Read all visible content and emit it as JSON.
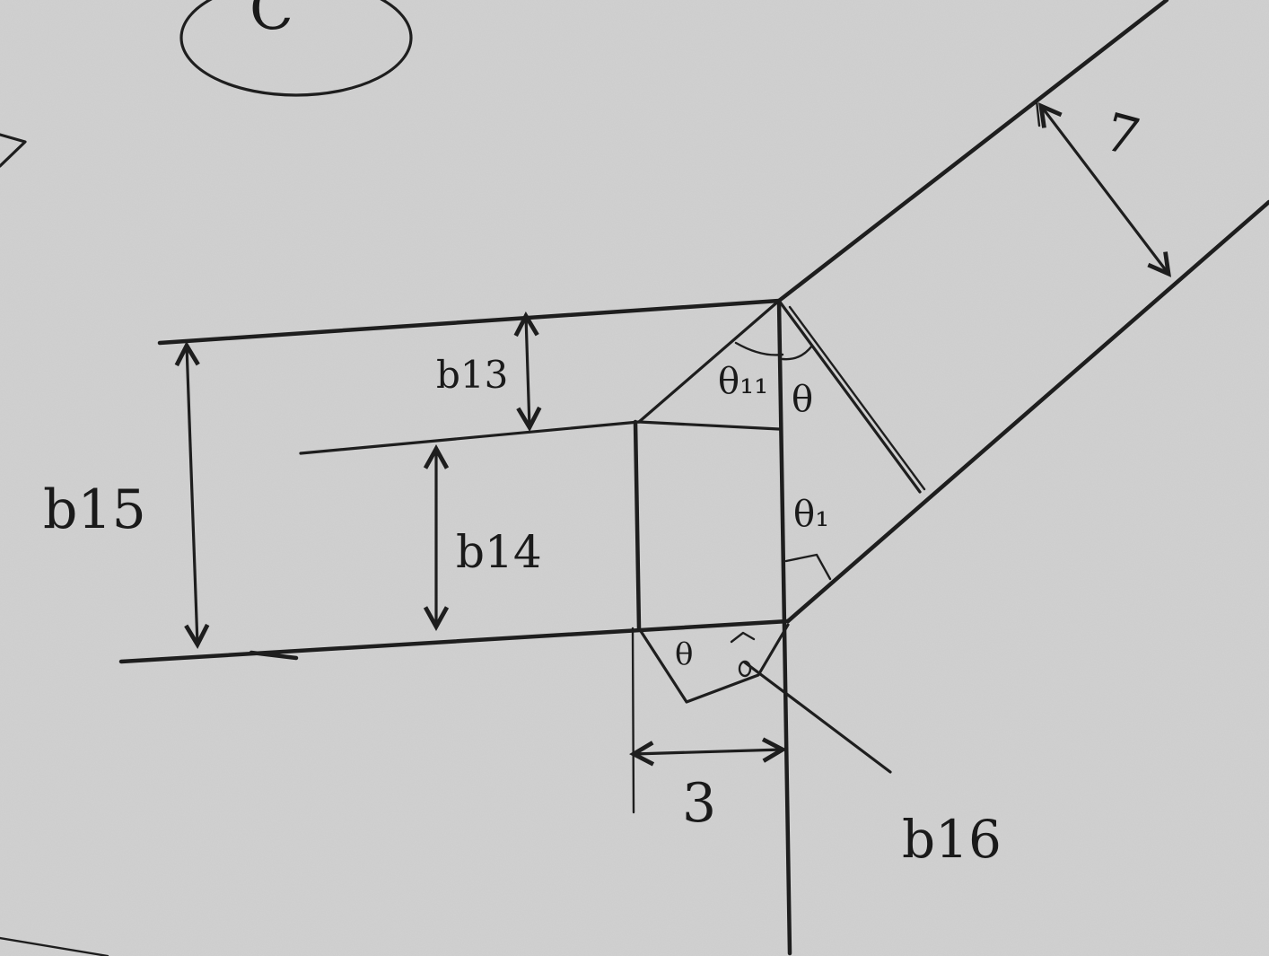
{
  "diagram": {
    "circle_letter": "C",
    "labels": {
      "b13": "b13",
      "b14": "b14",
      "b15": "b15",
      "b16": "b16",
      "dim_bottom": "3",
      "dim_diagonal": "7",
      "theta": "θ",
      "theta_small": "θ",
      "theta1": "θ₁",
      "theta11": "θ₁₁"
    }
  }
}
